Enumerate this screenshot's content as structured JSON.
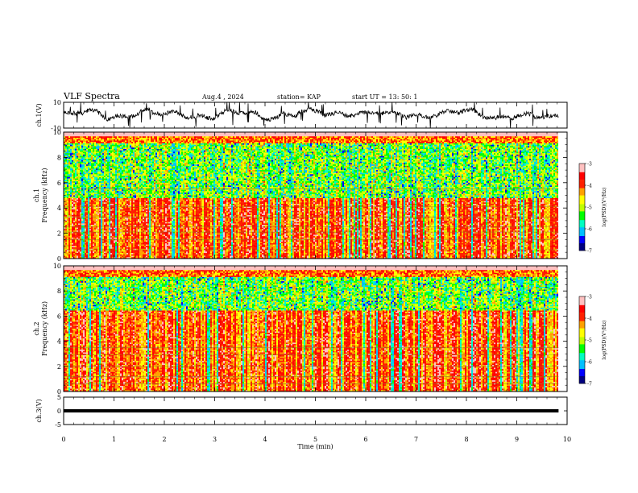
{
  "header": {
    "title": "VLF Spectra",
    "date": "Aug.4  , 2024",
    "station": "station= KAP",
    "start": "start  UT  =   13: 50: 1"
  },
  "chart_data": [
    {
      "type": "line",
      "panel": "ch1-waveform",
      "ylabel": "ch.1(V)",
      "ylim": [
        -10,
        10
      ],
      "yticklabels": [
        "10",
        "-10"
      ],
      "xlim": [
        0,
        10
      ],
      "color": "#000000"
    },
    {
      "type": "heatmap",
      "panel": "ch1-spectrogram",
      "ylabel": "ch.1 Frequency (kHz)",
      "ylim": [
        0,
        10
      ],
      "yticks": [
        0,
        2,
        4,
        6,
        8,
        10
      ],
      "xlim": [
        0,
        10
      ],
      "colorbar": {
        "label": "log(PSD)(V²/Hz)",
        "range": [
          -7,
          -3
        ],
        "ticks": [
          -3,
          -4,
          -5,
          -6,
          -7
        ]
      }
    },
    {
      "type": "heatmap",
      "panel": "ch2-spectrogram",
      "ylabel": "ch.2 Frequency (kHz)",
      "ylim": [
        0,
        10
      ],
      "yticks": [
        0,
        2,
        4,
        6,
        8,
        10
      ],
      "xlim": [
        0,
        10
      ],
      "colorbar": {
        "label": "log(PSD)(V²/Hz)",
        "range": [
          -7,
          -3
        ],
        "ticks": [
          -3,
          -4,
          -5,
          -6,
          -7
        ]
      }
    },
    {
      "type": "line",
      "panel": "ch3-waveform",
      "ylabel": "ch.3(V)",
      "ylim": [
        -5,
        5
      ],
      "yticks": [
        5,
        0,
        -5
      ],
      "yticklabels": [
        "5",
        "0",
        "-5"
      ],
      "xlim": [
        0,
        10
      ],
      "color": "#000000"
    }
  ],
  "xaxis": {
    "label": "Time  (min)",
    "ticks": [
      0,
      1,
      2,
      3,
      4,
      5,
      6,
      7,
      8,
      9,
      10
    ],
    "ticklabels": [
      "0",
      "1",
      "2",
      "3",
      "4",
      "5",
      "6",
      "7",
      "8",
      "9",
      "10"
    ],
    "data_end": 9.83
  },
  "colormap": [
    "#000080",
    "#0000ff",
    "#00bfff",
    "#00ffc0",
    "#00ff00",
    "#c0ff00",
    "#ffff00",
    "#ffa000",
    "#ff2000",
    "#ff0000",
    "#ffc0c0",
    "#ffffff"
  ]
}
